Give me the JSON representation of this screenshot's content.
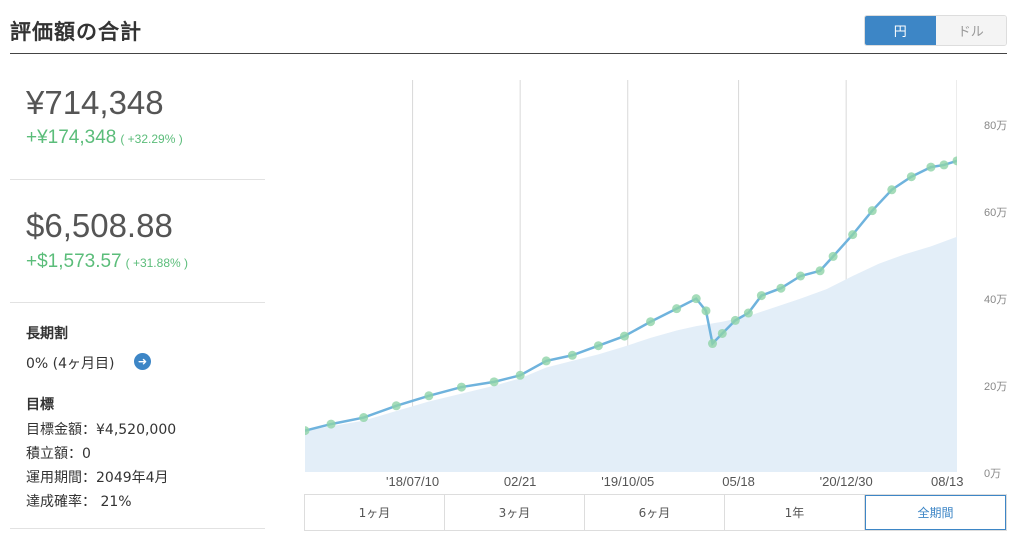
{
  "header": {
    "title": "評価額の合計"
  },
  "currency_toggle": {
    "options": [
      {
        "label": "円",
        "active": true
      },
      {
        "label": "ドル",
        "active": false
      }
    ]
  },
  "summary": {
    "jpy": {
      "value": "¥714,348",
      "gain": "+¥174,348",
      "pct": "( +32.29% )"
    },
    "usd": {
      "value": "$6,508.88",
      "gain": "+$1,573.57",
      "pct": "( +31.88% )"
    },
    "gain_color": "#5bbd7a"
  },
  "long_term_discount": {
    "heading": "長期割",
    "value": "0% (4ヶ月目)"
  },
  "goal": {
    "heading": "目標",
    "lines": [
      "目標金額：¥4,520,000",
      "積立額：0",
      "運用期間：2049年4月",
      "達成確率： 21%"
    ]
  },
  "chart_data": {
    "type": "area",
    "y_unit_ticks": [
      "80万",
      "60万",
      "40万",
      "20万",
      "0万"
    ],
    "x_ticks": [
      "'18/07/10",
      "02/21",
      "'19/10/05",
      "05/18",
      "'20/12/30",
      "08/13"
    ],
    "ylim": [
      0,
      900000
    ],
    "grid": true,
    "series": [
      {
        "kind": "line",
        "color": "#6fb3dd",
        "points": [
          [
            0.0,
            95000
          ],
          [
            0.04,
            110000
          ],
          [
            0.09,
            125000
          ],
          [
            0.14,
            152000
          ],
          [
            0.19,
            175000
          ],
          [
            0.24,
            195000
          ],
          [
            0.29,
            207000
          ],
          [
            0.33,
            222000
          ],
          [
            0.37,
            255000
          ],
          [
            0.41,
            268000
          ],
          [
            0.45,
            290000
          ],
          [
            0.49,
            312000
          ],
          [
            0.53,
            345000
          ],
          [
            0.57,
            375000
          ],
          [
            0.6,
            398000
          ],
          [
            0.615,
            370000
          ],
          [
            0.625,
            295000
          ],
          [
            0.64,
            318000
          ],
          [
            0.66,
            348000
          ],
          [
            0.68,
            365000
          ],
          [
            0.7,
            405000
          ],
          [
            0.73,
            422000
          ],
          [
            0.76,
            450000
          ],
          [
            0.79,
            462000
          ],
          [
            0.81,
            495000
          ],
          [
            0.84,
            545000
          ],
          [
            0.87,
            600000
          ],
          [
            0.9,
            648000
          ],
          [
            0.93,
            678000
          ],
          [
            0.96,
            700000
          ],
          [
            0.98,
            705000
          ],
          [
            1.0,
            714348
          ]
        ]
      },
      {
        "kind": "area",
        "color": "#e3eef8",
        "points": [
          [
            0.0,
            95000
          ],
          [
            0.04,
            105000
          ],
          [
            0.09,
            118000
          ],
          [
            0.14,
            140000
          ],
          [
            0.19,
            162000
          ],
          [
            0.24,
            180000
          ],
          [
            0.29,
            198000
          ],
          [
            0.33,
            215000
          ],
          [
            0.37,
            240000
          ],
          [
            0.41,
            255000
          ],
          [
            0.45,
            270000
          ],
          [
            0.49,
            288000
          ],
          [
            0.53,
            308000
          ],
          [
            0.57,
            325000
          ],
          [
            0.6,
            335000
          ],
          [
            0.64,
            345000
          ],
          [
            0.68,
            358000
          ],
          [
            0.72,
            378000
          ],
          [
            0.76,
            398000
          ],
          [
            0.8,
            420000
          ],
          [
            0.84,
            450000
          ],
          [
            0.88,
            478000
          ],
          [
            0.92,
            500000
          ],
          [
            0.96,
            518000
          ],
          [
            1.0,
            540000
          ]
        ]
      }
    ]
  },
  "range_buttons": [
    {
      "label": "1ヶ月",
      "active": false
    },
    {
      "label": "3ヶ月",
      "active": false
    },
    {
      "label": "6ヶ月",
      "active": false
    },
    {
      "label": "1年",
      "active": false
    },
    {
      "label": "全期間",
      "active": true
    }
  ]
}
